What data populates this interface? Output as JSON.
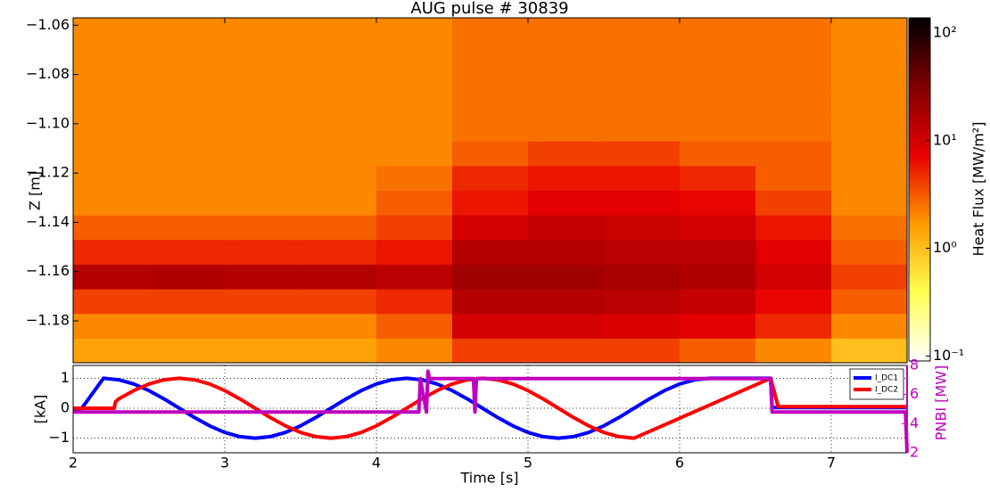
{
  "chart_data": [
    {
      "type": "heatmap",
      "title": "AUG pulse # 30839",
      "ylabel": "Z [m]",
      "xlim": [
        2,
        7.5
      ],
      "ylim": [
        -1.197,
        -1.057
      ],
      "xbins": [
        2.0,
        2.5,
        3.0,
        3.5,
        4.0,
        4.5,
        5.0,
        5.5,
        6.0,
        6.5,
        7.0,
        7.5
      ],
      "ybins": [
        -1.197,
        -1.187,
        -1.177,
        -1.167,
        -1.157,
        -1.147,
        -1.137,
        -1.127,
        -1.117,
        -1.107,
        -1.097,
        -1.087,
        -1.077,
        -1.067,
        -1.057
      ],
      "values": [
        [
          1.5,
          1.5,
          1.5,
          1.5,
          2,
          4,
          4,
          4,
          3,
          2,
          1
        ],
        [
          2,
          2,
          2,
          2,
          3,
          10,
          10,
          9,
          8,
          5,
          2
        ],
        [
          4,
          4,
          4,
          4,
          5,
          15,
          15,
          14,
          12,
          7,
          3
        ],
        [
          15,
          16,
          15,
          15,
          14,
          20,
          20,
          18,
          16,
          10,
          4
        ],
        [
          5,
          5,
          5,
          5,
          6,
          15,
          15,
          14,
          14,
          8,
          3
        ],
        [
          3,
          3,
          3,
          3,
          4,
          10,
          12,
          11,
          10,
          6,
          2.5
        ],
        [
          2,
          2,
          2,
          2,
          3,
          6,
          8,
          8,
          7,
          4,
          2
        ],
        [
          2,
          2,
          2,
          2,
          2.5,
          5,
          6,
          6,
          5,
          3,
          2
        ],
        [
          2,
          2,
          2,
          2,
          2,
          3,
          4,
          4,
          3,
          3,
          2
        ],
        [
          2,
          2,
          2,
          2,
          2,
          2.5,
          2.5,
          2.5,
          2.5,
          2.5,
          2
        ],
        [
          2,
          2,
          2,
          2,
          2,
          2.5,
          2.5,
          2.5,
          2.5,
          2.5,
          2
        ],
        [
          2,
          2,
          2,
          2,
          2,
          2.5,
          2.5,
          2.5,
          2.5,
          2.5,
          2
        ],
        [
          2,
          2,
          2,
          2,
          2,
          2.5,
          2.5,
          2.5,
          2.5,
          2.5,
          2
        ],
        [
          2,
          2,
          2,
          2,
          2,
          2.5,
          2.5,
          2.5,
          2.5,
          2.5,
          2
        ]
      ],
      "yticks": [
        {
          "value": -1.18,
          "label": "−1.18"
        },
        {
          "value": -1.16,
          "label": "−1.16"
        },
        {
          "value": -1.14,
          "label": "−1.14"
        },
        {
          "value": -1.12,
          "label": "−1.12"
        },
        {
          "value": -1.1,
          "label": "−1.10"
        },
        {
          "value": -1.08,
          "label": "−1.08"
        },
        {
          "value": -1.06,
          "label": "−1.06"
        }
      ],
      "color_log_scale": true,
      "clim": [
        0.09,
        138
      ],
      "colormap": [
        "#ffffff",
        "#ffff50",
        "#ff9a00",
        "#e80000",
        "#800000",
        "#000000"
      ],
      "colorbar_label": "Heat Flux [MW/m²]",
      "colorbar_ticks": [
        {
          "value": 0.1,
          "label": "10⁻¹"
        },
        {
          "value": 1,
          "label": "10⁰"
        },
        {
          "value": 10,
          "label": "10¹"
        },
        {
          "value": 100,
          "label": "10²"
        }
      ]
    },
    {
      "type": "line",
      "xlabel": "Time [s]",
      "ylabel": "[kA]",
      "y2label": "PNBI [MW]",
      "y2color": "#c000c0",
      "xlim": [
        2,
        7.5
      ],
      "xticks": [
        2,
        3,
        4,
        5,
        6,
        7
      ],
      "ylim": [
        -1.49,
        1.43
      ],
      "yticks": [
        {
          "value": -1,
          "label": "−1"
        },
        0,
        1
      ],
      "y2lim": [
        2,
        8
      ],
      "y2ticks": [
        2,
        4,
        6,
        8
      ],
      "grid": true,
      "legend": "upper right",
      "series": [
        {
          "name": "I_DC1",
          "color": "#0000ff",
          "x": [
            2.0,
            2.05,
            2.2,
            2.3,
            2.4,
            2.5,
            2.6,
            2.7,
            2.8,
            2.9,
            3.0,
            3.1,
            3.2,
            3.3,
            3.4,
            3.5,
            3.6,
            3.7,
            3.8,
            3.9,
            4.0,
            4.1,
            4.2,
            4.3,
            4.4,
            4.5,
            4.6,
            4.7,
            4.8,
            4.9,
            5.0,
            5.1,
            5.2,
            5.3,
            5.4,
            5.5,
            5.6,
            5.7,
            5.8,
            5.9,
            6.0,
            6.1,
            6.2,
            6.3,
            6.4,
            6.5,
            6.6,
            6.61,
            7.0,
            7.5
          ],
          "values": [
            -0.05,
            -0.05,
            1.0,
            0.95,
            0.81,
            0.59,
            0.31,
            0.0,
            -0.31,
            -0.59,
            -0.81,
            -0.95,
            -1.0,
            -0.95,
            -0.81,
            -0.59,
            -0.31,
            0.0,
            0.31,
            0.59,
            0.81,
            0.95,
            1.0,
            0.95,
            0.81,
            0.59,
            0.31,
            0.0,
            -0.31,
            -0.59,
            -0.81,
            -0.95,
            -1.0,
            -0.95,
            -0.81,
            -0.59,
            -0.31,
            0.0,
            0.31,
            0.59,
            0.81,
            0.95,
            1.0,
            1.0,
            1.0,
            1.0,
            1.0,
            0.02,
            0.02,
            0.02
          ]
        },
        {
          "name": "I_DC2",
          "color": "#ff0000",
          "x": [
            2.0,
            2.27,
            2.28,
            2.3,
            2.4,
            2.5,
            2.6,
            2.7,
            2.8,
            2.9,
            3.0,
            3.1,
            3.2,
            3.3,
            3.4,
            3.5,
            3.6,
            3.7,
            3.8,
            3.9,
            4.0,
            4.1,
            4.2,
            4.3,
            4.4,
            4.5,
            4.6,
            4.7,
            4.8,
            4.9,
            5.0,
            5.1,
            5.2,
            5.3,
            5.4,
            5.5,
            5.6,
            5.7,
            6.6,
            6.65,
            7.0,
            7.5
          ],
          "values": [
            0.0,
            0.0,
            0.22,
            0.31,
            0.59,
            0.81,
            0.95,
            1.0,
            0.95,
            0.81,
            0.59,
            0.31,
            0.0,
            -0.31,
            -0.59,
            -0.81,
            -0.95,
            -1.0,
            -0.95,
            -0.81,
            -0.59,
            -0.31,
            0.0,
            0.31,
            0.59,
            0.81,
            0.95,
            1.0,
            0.95,
            0.81,
            0.59,
            0.31,
            0.0,
            -0.31,
            -0.59,
            -0.81,
            -0.95,
            -1.0,
            1.0,
            0.05,
            0.05,
            0.05
          ]
        },
        {
          "color": "#c000c0",
          "axis": "y2",
          "x": [
            2.0,
            4.28,
            4.29,
            4.33,
            4.34,
            4.35,
            4.64,
            4.65,
            4.66,
            6.6,
            6.61,
            7.49,
            7.5
          ],
          "values": [
            4.8,
            4.8,
            7.1,
            4.8,
            7.6,
            7.1,
            7.1,
            4.8,
            7.1,
            7.1,
            4.8,
            4.8,
            2.0
          ]
        }
      ]
    }
  ]
}
